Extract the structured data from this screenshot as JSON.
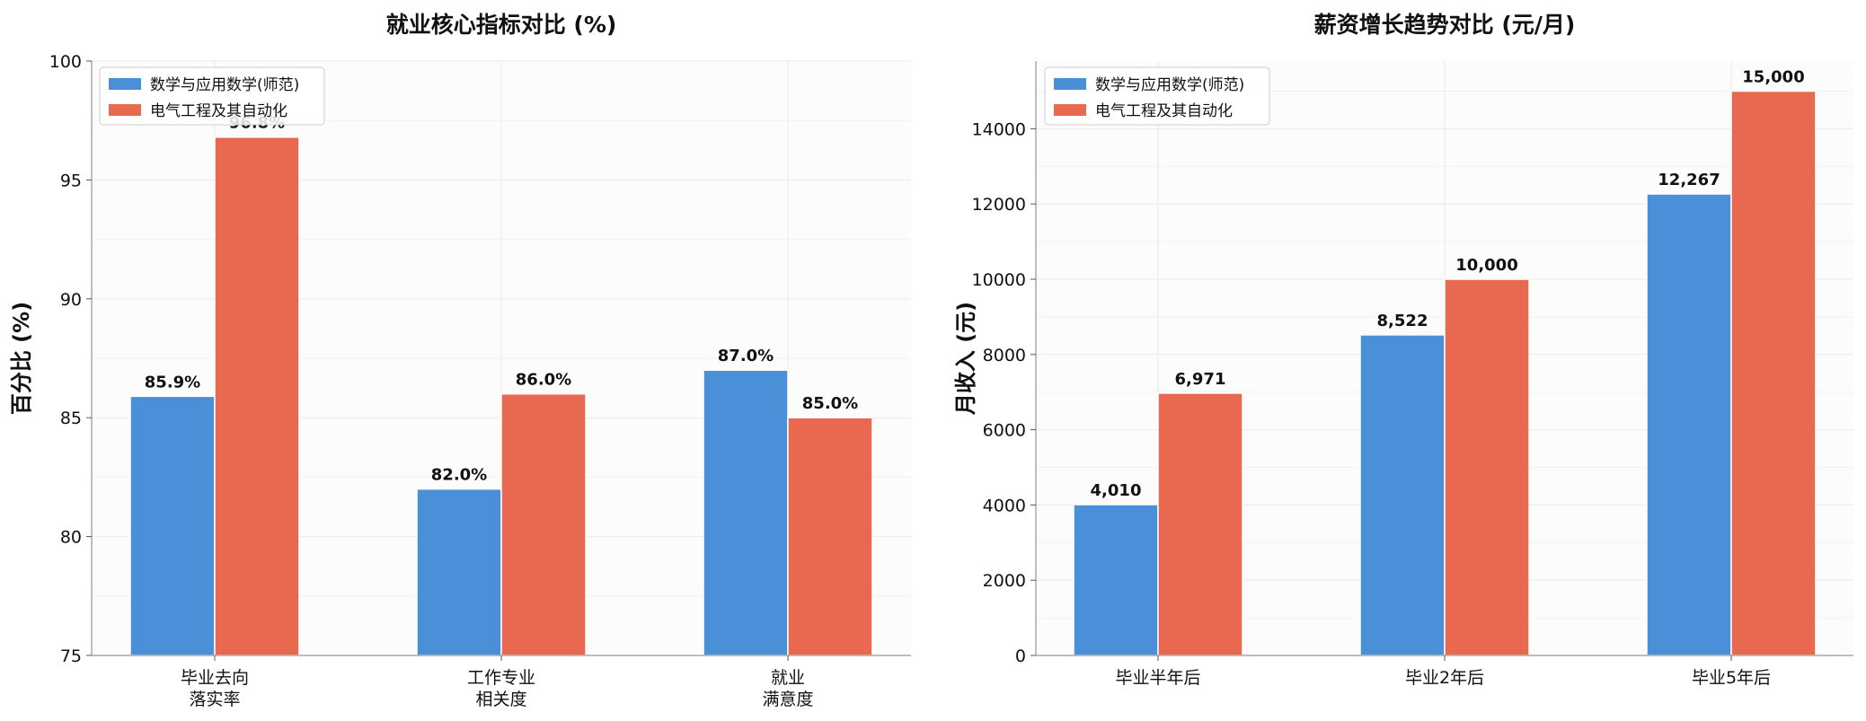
{
  "colors": {
    "series_1": "#4A90D9",
    "series_2": "#E8694F",
    "plot_background": "#FCFCFC",
    "grid": "#EAEAEA",
    "axis": "#AAAAAA",
    "text": "#111111"
  },
  "chart_data": [
    {
      "type": "bar",
      "title": "就业核心指标对比 (%)",
      "xlabel": "",
      "ylabel": "百分比 (%)",
      "categories": [
        "毕业去向\n落实率",
        "工作专业\n相关度",
        "就业\n满意度"
      ],
      "series": [
        {
          "name": "数学与应用数学(师范)",
          "values": [
            85.9,
            82.0,
            87.0
          ],
          "labels": [
            "85.9%",
            "82.0%",
            "87.0%"
          ]
        },
        {
          "name": "电气工程及其自动化",
          "values": [
            96.8,
            86.0,
            85.0
          ],
          "labels": [
            "96.8%",
            "86.0%",
            "85.0%"
          ]
        }
      ],
      "ylim": [
        75,
        100
      ],
      "yticks": [
        75,
        80,
        85,
        90,
        95,
        100
      ],
      "ytick_labels": [
        "75",
        "80",
        "85",
        "90",
        "95",
        "100"
      ],
      "grid": true,
      "legend_position": "top-left"
    },
    {
      "type": "bar",
      "title": "薪资增长趋势对比 (元/月)",
      "xlabel": "",
      "ylabel": "月收入 (元)",
      "categories": [
        "毕业半年后",
        "毕业2年后",
        "毕业5年后"
      ],
      "series": [
        {
          "name": "数学与应用数学(师范)",
          "values": [
            4010,
            8522,
            12267
          ],
          "labels": [
            "4,010",
            "8,522",
            "12,267"
          ]
        },
        {
          "name": "电气工程及其自动化",
          "values": [
            6971,
            10000,
            15000
          ],
          "labels": [
            "6,971",
            "10,000",
            "15,000"
          ]
        }
      ],
      "ylim": [
        0,
        15800
      ],
      "yticks": [
        0,
        2000,
        4000,
        6000,
        8000,
        10000,
        12000,
        14000
      ],
      "ytick_labels": [
        "0",
        "2000",
        "4000",
        "6000",
        "8000",
        "10000",
        "12000",
        "14000"
      ],
      "grid": true,
      "legend_position": "top-left"
    }
  ]
}
